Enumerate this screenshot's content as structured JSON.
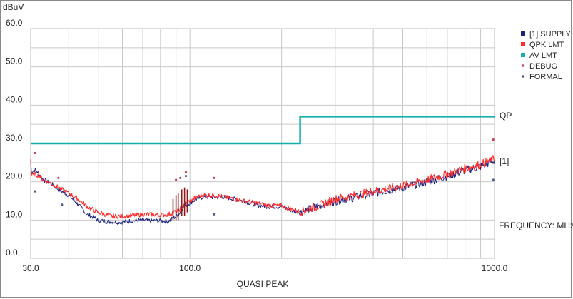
{
  "chart_data": {
    "type": "line",
    "ylabel": "dBuV",
    "xlabel": "QUASI PEAK",
    "frequency_label": "FREQUENCY: MHz",
    "x_scale": "log",
    "xlim": [
      30,
      1000
    ],
    "ylim": [
      0,
      60
    ],
    "x_ticks": [
      {
        "value": 30,
        "label": "30.0"
      },
      {
        "value": 100,
        "label": "100.0"
      },
      {
        "value": 1000,
        "label": "1000.0"
      }
    ],
    "y_ticks": [
      {
        "value": 0,
        "label": "0.0"
      },
      {
        "value": 10,
        "label": "10.0"
      },
      {
        "value": 20,
        "label": "20.0"
      },
      {
        "value": 30,
        "label": "30.0"
      },
      {
        "value": 40,
        "label": "40.0"
      },
      {
        "value": 50,
        "label": "50.0"
      },
      {
        "value": 60,
        "label": "60.0"
      }
    ],
    "grid": true,
    "legend_position": "right",
    "legend": [
      {
        "name": "[1] SUPPLY",
        "color": "#1a237e",
        "marker": "square"
      },
      {
        "name": "QPK LMT",
        "color": "#ff2a2a",
        "marker": "square"
      },
      {
        "name": "AV LMT",
        "color": "#14b0a8",
        "marker": "square"
      },
      {
        "name": "DEBUG",
        "color": "#c0455a",
        "marker": "dot"
      },
      {
        "name": "FORMAL",
        "color": "#4a5a8c",
        "marker": "dot"
      }
    ],
    "limit_label": "QP",
    "trace_label": "[1]",
    "limit_line": {
      "color": "#14b0a8",
      "x": [
        30,
        230,
        230,
        1000
      ],
      "y": [
        30,
        30,
        37,
        37
      ]
    },
    "series": [
      {
        "name": "[1] SUPPLY",
        "color": "#1a237e",
        "x": [
          30,
          31,
          32,
          33,
          35,
          37,
          40,
          43,
          46,
          50,
          55,
          60,
          65,
          70,
          75,
          80,
          85,
          88,
          92,
          95,
          100,
          105,
          110,
          120,
          130,
          140,
          150,
          165,
          180,
          200,
          215,
          230,
          260,
          300,
          350,
          400,
          500,
          600,
          700,
          800,
          900,
          1000
        ],
        "y": [
          22.5,
          23.2,
          22.0,
          20.5,
          19.5,
          18.0,
          16.5,
          14.0,
          11.5,
          10.0,
          9.5,
          9.5,
          9.8,
          10.0,
          9.8,
          9.8,
          9.7,
          10.5,
          11.5,
          13.5,
          14.5,
          15.5,
          16.0,
          16.0,
          16.0,
          15.5,
          15.0,
          14.0,
          13.5,
          13.5,
          12.5,
          12.0,
          13.5,
          15.0,
          16.0,
          17.0,
          18.5,
          20.0,
          21.5,
          23.0,
          24.0,
          25.5
        ]
      },
      {
        "name": "QPK LMT",
        "color": "#ff2a2a",
        "x": [
          30,
          31,
          32,
          33,
          35,
          37,
          40,
          43,
          46,
          50,
          55,
          60,
          65,
          70,
          75,
          80,
          85,
          88,
          92,
          95,
          100,
          105,
          110,
          120,
          130,
          140,
          150,
          165,
          180,
          200,
          215,
          230,
          260,
          300,
          350,
          400,
          500,
          600,
          700,
          800,
          900,
          1000
        ],
        "y": [
          21.5,
          22.0,
          21.5,
          20.5,
          19.5,
          18.5,
          17.0,
          15.5,
          13.5,
          12.0,
          11.0,
          11.0,
          11.2,
          11.5,
          11.5,
          11.3,
          11.5,
          12.0,
          12.5,
          14.0,
          15.0,
          16.0,
          16.5,
          16.5,
          16.0,
          15.5,
          15.0,
          14.5,
          13.8,
          13.8,
          12.8,
          12.2,
          13.5,
          15.5,
          16.5,
          17.5,
          19.0,
          20.5,
          22.0,
          23.5,
          24.5,
          26.0
        ]
      }
    ],
    "markers": [
      {
        "type": "DEBUG",
        "x": 31.0,
        "y": 27.5
      },
      {
        "type": "DEBUG",
        "x": 37.0,
        "y": 21.0
      },
      {
        "type": "DEBUG",
        "x": 90.0,
        "y": 20.5
      },
      {
        "type": "DEBUG",
        "x": 93.0,
        "y": 21.0
      },
      {
        "type": "DEBUG",
        "x": 97.0,
        "y": 22.5
      },
      {
        "type": "DEBUG",
        "x": 120.0,
        "y": 21.0
      },
      {
        "type": "DEBUG",
        "x": 990.0,
        "y": 31.0
      },
      {
        "type": "FORMAL",
        "x": 31.0,
        "y": 17.5
      },
      {
        "type": "FORMAL",
        "x": 38.0,
        "y": 14.0
      },
      {
        "type": "FORMAL",
        "x": 97.0,
        "y": 21.5
      },
      {
        "type": "FORMAL",
        "x": 120.0,
        "y": 11.5
      },
      {
        "type": "FORMAL",
        "x": 990.0,
        "y": 20.5
      }
    ],
    "spikes": [
      {
        "x": 88,
        "from": 10,
        "to": 15.5
      },
      {
        "x": 90,
        "from": 10,
        "to": 16.5
      },
      {
        "x": 91.5,
        "from": 10,
        "to": 17.0
      },
      {
        "x": 94,
        "from": 11,
        "to": 18.0
      },
      {
        "x": 96,
        "from": 11,
        "to": 18.5
      },
      {
        "x": 98,
        "from": 12,
        "to": 18.0
      }
    ]
  }
}
